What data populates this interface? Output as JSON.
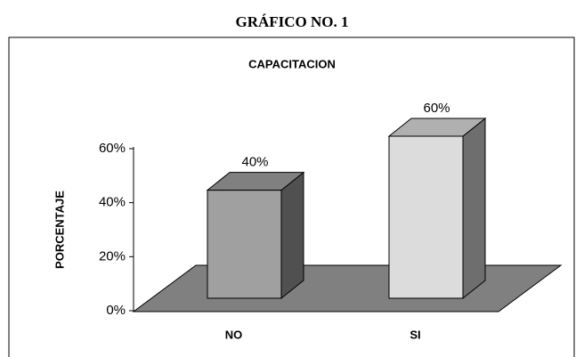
{
  "page_title": "GRÁFICO NO. 1",
  "chart_data": {
    "type": "bar3d",
    "title": "CAPACITACION",
    "y_label": "PORCENTAJE",
    "categories": [
      "NO",
      "SI"
    ],
    "values": [
      40,
      60
    ],
    "value_labels": [
      "40%",
      "60%"
    ],
    "colors": [
      "#a0a0a0",
      "#dcdcdc"
    ],
    "ylim": [
      0,
      60
    ],
    "yticks": [
      {
        "value": 0,
        "label": "0%"
      },
      {
        "value": 20,
        "label": "20%"
      },
      {
        "value": 40,
        "label": "40%"
      },
      {
        "value": 60,
        "label": "60%"
      }
    ]
  }
}
